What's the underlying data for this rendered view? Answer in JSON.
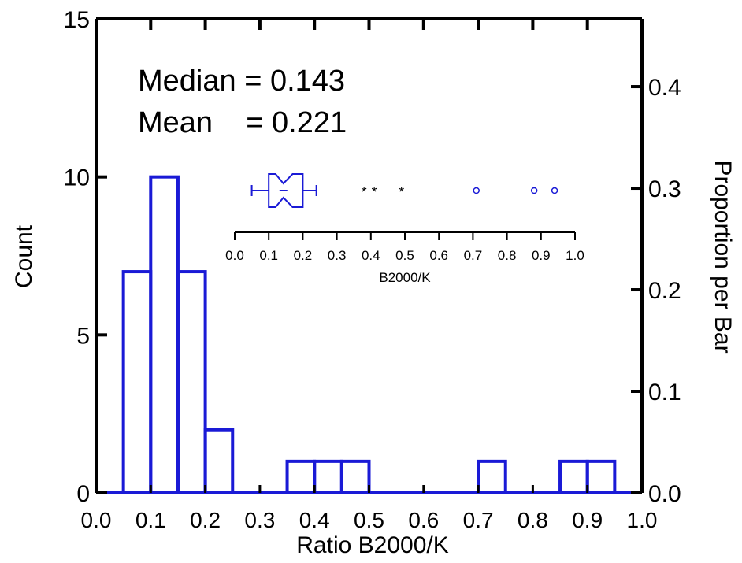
{
  "chart_data": {
    "type": "bar",
    "xlabel": "Ratio B2000/K",
    "ylabel": "Count",
    "y2label": "Proportion per Bar",
    "xlim": [
      0.0,
      1.0
    ],
    "ylim": [
      0,
      15
    ],
    "y2lim": [
      0.0,
      0.4667
    ],
    "grid": false,
    "x_ticks": [
      "0.0",
      "0.1",
      "0.2",
      "0.3",
      "0.4",
      "0.5",
      "0.6",
      "0.7",
      "0.8",
      "0.9",
      "1.0"
    ],
    "y_ticks": [
      "0",
      "5",
      "10",
      "15"
    ],
    "y2_ticks": [
      "0.0",
      "0.1",
      "0.2",
      "0.3",
      "0.4"
    ],
    "bin_width": 0.05,
    "bins": [
      {
        "x0": 0.05,
        "count": 7
      },
      {
        "x0": 0.1,
        "count": 10
      },
      {
        "x0": 0.15,
        "count": 7
      },
      {
        "x0": 0.2,
        "count": 2
      },
      {
        "x0": 0.35,
        "count": 1
      },
      {
        "x0": 0.4,
        "count": 1
      },
      {
        "x0": 0.45,
        "count": 1
      },
      {
        "x0": 0.7,
        "count": 1
      },
      {
        "x0": 0.85,
        "count": 1
      },
      {
        "x0": 0.9,
        "count": 1
      }
    ],
    "annotations": {
      "median": "Median = 0.143",
      "mean": "Mean    = 0.221"
    },
    "inset_boxplot": {
      "xlabel": "B2000/K",
      "x_ticks": [
        "0.0",
        "0.1",
        "0.2",
        "0.3",
        "0.4",
        "0.5",
        "0.6",
        "0.7",
        "0.8",
        "0.9",
        "1.0"
      ],
      "whisker_low": 0.05,
      "q1": 0.1,
      "median": 0.143,
      "q3": 0.2,
      "whisker_high": 0.24,
      "notch_low": 0.12,
      "notch_high": 0.17,
      "outliers_star": [
        0.38,
        0.41,
        0.49
      ],
      "outliers_circle": [
        0.71,
        0.88,
        0.94
      ]
    },
    "colors": {
      "bar": "#1a1ad6",
      "axis": "#000000"
    }
  }
}
